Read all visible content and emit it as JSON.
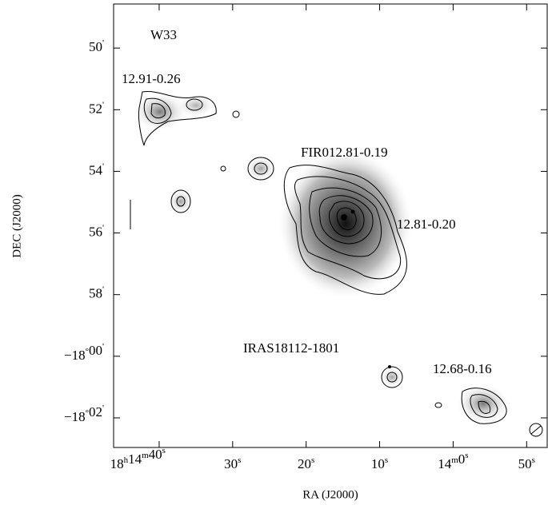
{
  "chart_data": {
    "type": "image",
    "xlabel": "RA (J2000)",
    "ylabel": "DEC (J2000)",
    "xlim": [
      886.2,
      827.2
    ],
    "xticks": [
      {
        "value": 880,
        "label": "18h14m40s"
      },
      {
        "value": 870,
        "label": "30s"
      },
      {
        "value": 860,
        "label": "20s"
      },
      {
        "value": 850,
        "label": "10s"
      },
      {
        "value": 840,
        "label": "14m0s"
      },
      {
        "value": 830,
        "label": "50s"
      }
    ],
    "ylim": [
      -1082.96,
      -1068.57
    ],
    "yticks": [
      {
        "value": -1070,
        "label": "50'"
      },
      {
        "value": -1072,
        "label": "52'"
      },
      {
        "value": -1074,
        "label": "54'"
      },
      {
        "value": -1076,
        "label": "56'"
      },
      {
        "value": -1078,
        "label": "58'"
      },
      {
        "value": -1080,
        "label": "-18°00'"
      },
      {
        "value": -1082,
        "label": "-18°02'"
      }
    ],
    "annotations": [
      "W33",
      "12.91-0.26",
      "FIR012.81-0.19",
      "12.81-0.20",
      "IRAS18112-1801",
      "12.68-0.16"
    ]
  }
}
